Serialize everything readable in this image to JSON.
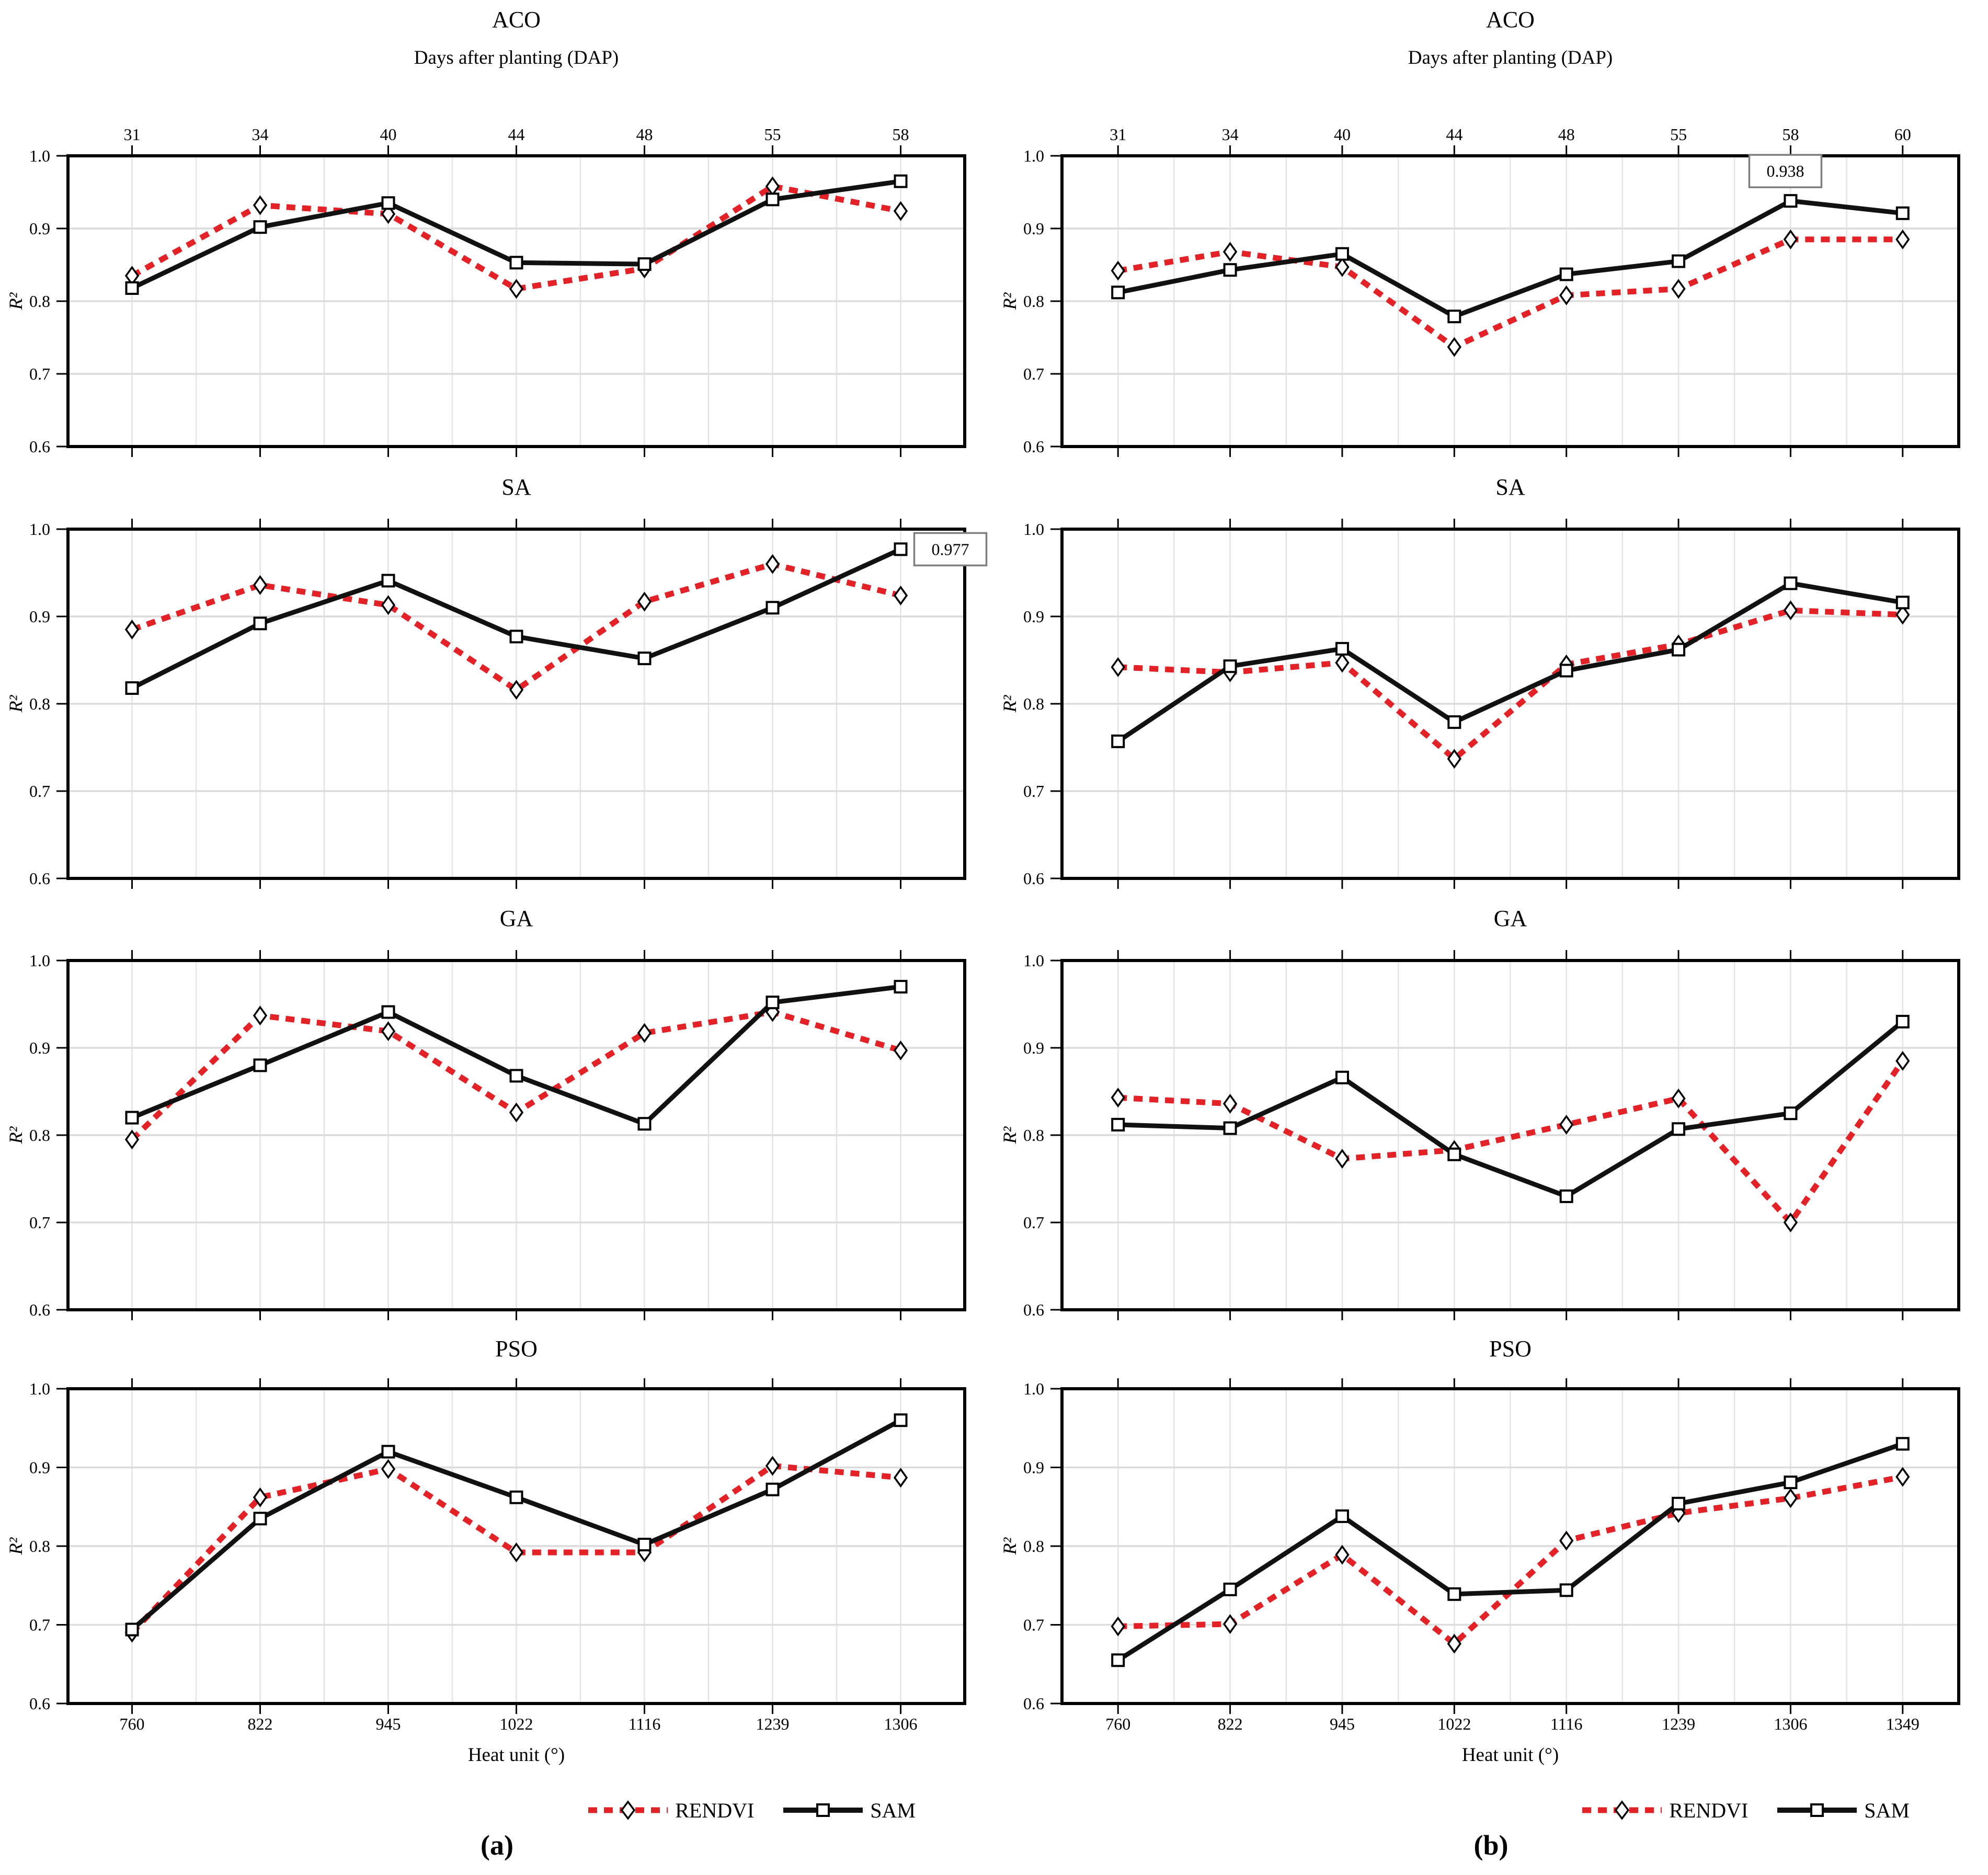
{
  "legend": {
    "rendvi_label": "RENDVI",
    "sam_label": "SAM"
  },
  "captions": {
    "a": "(a)",
    "b": "(b)"
  },
  "colors": {
    "rendvi": "#e32228",
    "sam": "#111111",
    "grid_vertical": "#e4e4e4",
    "grid_horizontal": "#dcdcdc",
    "axis": "#000000",
    "annotation_border": "#7f7f7f"
  },
  "axis_text": {
    "y_label": "R²",
    "top_axis_title": "Days after planting (DAP)",
    "bottom_axis_title": "Heat unit (°)",
    "y_ticks": [
      "1.0",
      "0.9",
      "0.8",
      "0.7",
      "0.6"
    ]
  },
  "chart_data": [
    {
      "type": "line",
      "panel": "a",
      "title": "ACO",
      "row_layout": "top",
      "top_axis_title": "Days after planting (DAP)",
      "ylabel": "R²",
      "dap": [
        31,
        34,
        40,
        44,
        48,
        55,
        58
      ],
      "heat_units": [
        760,
        822,
        945,
        1022,
        1116,
        1239,
        1306
      ],
      "show_dap_labels": true,
      "show_heat_labels": false,
      "ylim": [
        0.6,
        1.0
      ],
      "yticks": [
        0.6,
        0.7,
        0.8,
        0.9,
        1.0
      ],
      "grid": true,
      "series": [
        {
          "name": "RENDVI",
          "values": [
            0.835,
            0.932,
            0.92,
            0.817,
            0.845,
            0.958,
            0.924
          ]
        },
        {
          "name": "SAM",
          "values": [
            0.818,
            0.902,
            0.935,
            0.853,
            0.851,
            0.94,
            0.965
          ]
        }
      ]
    },
    {
      "type": "line",
      "panel": "a",
      "title": "SA",
      "row_layout": "middle",
      "ylabel": "R²",
      "dap": [
        31,
        34,
        40,
        44,
        48,
        55,
        58
      ],
      "heat_units": [
        760,
        822,
        945,
        1022,
        1116,
        1239,
        1306
      ],
      "show_dap_labels": false,
      "show_heat_labels": false,
      "ylim": [
        0.6,
        1.0
      ],
      "yticks": [
        0.6,
        0.7,
        0.8,
        0.9,
        1.0
      ],
      "grid": true,
      "series": [
        {
          "name": "RENDVI",
          "values": [
            0.885,
            0.936,
            0.913,
            0.816,
            0.917,
            0.96,
            0.924
          ]
        },
        {
          "name": "SAM",
          "values": [
            0.818,
            0.892,
            0.941,
            0.877,
            0.852,
            0.91,
            0.977
          ]
        }
      ],
      "annotation": {
        "series": "SAM",
        "index": 6,
        "label": "0.977",
        "position": "right"
      }
    },
    {
      "type": "line",
      "panel": "a",
      "title": "GA",
      "row_layout": "middle",
      "ylabel": "R²",
      "dap": [
        31,
        34,
        40,
        44,
        48,
        55,
        58
      ],
      "heat_units": [
        760,
        822,
        945,
        1022,
        1116,
        1239,
        1306
      ],
      "show_dap_labels": false,
      "show_heat_labels": false,
      "ylim": [
        0.6,
        1.0
      ],
      "yticks": [
        0.6,
        0.7,
        0.8,
        0.9,
        1.0
      ],
      "grid": true,
      "series": [
        {
          "name": "RENDVI",
          "values": [
            0.795,
            0.937,
            0.919,
            0.826,
            0.917,
            0.941,
            0.897
          ]
        },
        {
          "name": "SAM",
          "values": [
            0.82,
            0.88,
            0.941,
            0.868,
            0.813,
            0.952,
            0.97
          ]
        }
      ]
    },
    {
      "type": "line",
      "panel": "a",
      "title": "PSO",
      "row_layout": "bottom",
      "bottom_axis_title": "Heat unit (°)",
      "ylabel": "R²",
      "dap": [
        31,
        34,
        40,
        44,
        48,
        55,
        58
      ],
      "heat_units": [
        760,
        822,
        945,
        1022,
        1116,
        1239,
        1306
      ],
      "show_dap_labels": false,
      "show_heat_labels": true,
      "ylim": [
        0.6,
        1.0
      ],
      "yticks": [
        0.6,
        0.7,
        0.8,
        0.9,
        1.0
      ],
      "grid": true,
      "series": [
        {
          "name": "RENDVI",
          "values": [
            0.69,
            0.862,
            0.898,
            0.792,
            0.792,
            0.902,
            0.887
          ]
        },
        {
          "name": "SAM",
          "values": [
            0.694,
            0.835,
            0.92,
            0.862,
            0.802,
            0.872,
            0.96
          ]
        }
      ]
    },
    {
      "type": "line",
      "panel": "b",
      "title": "ACO",
      "row_layout": "top",
      "top_axis_title": "Days after planting (DAP)",
      "ylabel": "R²",
      "dap": [
        31,
        34,
        40,
        44,
        48,
        55,
        58,
        60
      ],
      "heat_units": [
        760,
        822,
        945,
        1022,
        1116,
        1239,
        1306,
        1349
      ],
      "show_dap_labels": true,
      "show_heat_labels": false,
      "ylim": [
        0.6,
        1.0
      ],
      "yticks": [
        0.6,
        0.7,
        0.8,
        0.9,
        1.0
      ],
      "grid": true,
      "series": [
        {
          "name": "RENDVI",
          "values": [
            0.842,
            0.868,
            0.847,
            0.737,
            0.808,
            0.817,
            0.885,
            0.885
          ]
        },
        {
          "name": "SAM",
          "values": [
            0.812,
            0.843,
            0.865,
            0.779,
            0.837,
            0.855,
            0.938,
            0.921
          ]
        }
      ],
      "annotation": {
        "series": "SAM",
        "index": 6,
        "label": "0.938",
        "position": "above"
      }
    },
    {
      "type": "line",
      "panel": "b",
      "title": "SA",
      "row_layout": "middle",
      "ylabel": "R²",
      "dap": [
        31,
        34,
        40,
        44,
        48,
        55,
        58,
        60
      ],
      "heat_units": [
        760,
        822,
        945,
        1022,
        1116,
        1239,
        1306,
        1349
      ],
      "show_dap_labels": false,
      "show_heat_labels": false,
      "ylim": [
        0.6,
        1.0
      ],
      "yticks": [
        0.6,
        0.7,
        0.8,
        0.9,
        1.0
      ],
      "grid": true,
      "series": [
        {
          "name": "RENDVI",
          "values": [
            0.842,
            0.836,
            0.847,
            0.737,
            0.845,
            0.868,
            0.907,
            0.902
          ]
        },
        {
          "name": "SAM",
          "values": [
            0.757,
            0.843,
            0.863,
            0.779,
            0.838,
            0.862,
            0.938,
            0.916
          ]
        }
      ]
    },
    {
      "type": "line",
      "panel": "b",
      "title": "GA",
      "row_layout": "middle",
      "ylabel": "R²",
      "dap": [
        31,
        34,
        40,
        44,
        48,
        55,
        58,
        60
      ],
      "heat_units": [
        760,
        822,
        945,
        1022,
        1116,
        1239,
        1306,
        1349
      ],
      "show_dap_labels": false,
      "show_heat_labels": false,
      "ylim": [
        0.6,
        1.0
      ],
      "yticks": [
        0.6,
        0.7,
        0.8,
        0.9,
        1.0
      ],
      "grid": true,
      "series": [
        {
          "name": "RENDVI",
          "values": [
            0.843,
            0.836,
            0.773,
            0.783,
            0.812,
            0.842,
            0.7,
            0.885
          ]
        },
        {
          "name": "SAM",
          "values": [
            0.812,
            0.808,
            0.866,
            0.778,
            0.73,
            0.807,
            0.825,
            0.93
          ]
        }
      ]
    },
    {
      "type": "line",
      "panel": "b",
      "title": "PSO",
      "row_layout": "bottom",
      "bottom_axis_title": "Heat unit (°)",
      "ylabel": "R²",
      "dap": [
        31,
        34,
        40,
        44,
        48,
        55,
        58,
        60
      ],
      "heat_units": [
        760,
        822,
        945,
        1022,
        1116,
        1239,
        1306,
        1349
      ],
      "show_dap_labels": false,
      "show_heat_labels": true,
      "ylim": [
        0.6,
        1.0
      ],
      "yticks": [
        0.6,
        0.7,
        0.8,
        0.9,
        1.0
      ],
      "grid": true,
      "series": [
        {
          "name": "RENDVI",
          "values": [
            0.698,
            0.701,
            0.789,
            0.676,
            0.807,
            0.842,
            0.861,
            0.888
          ]
        },
        {
          "name": "SAM",
          "values": [
            0.655,
            0.745,
            0.838,
            0.739,
            0.744,
            0.854,
            0.881,
            0.93
          ]
        }
      ]
    }
  ]
}
